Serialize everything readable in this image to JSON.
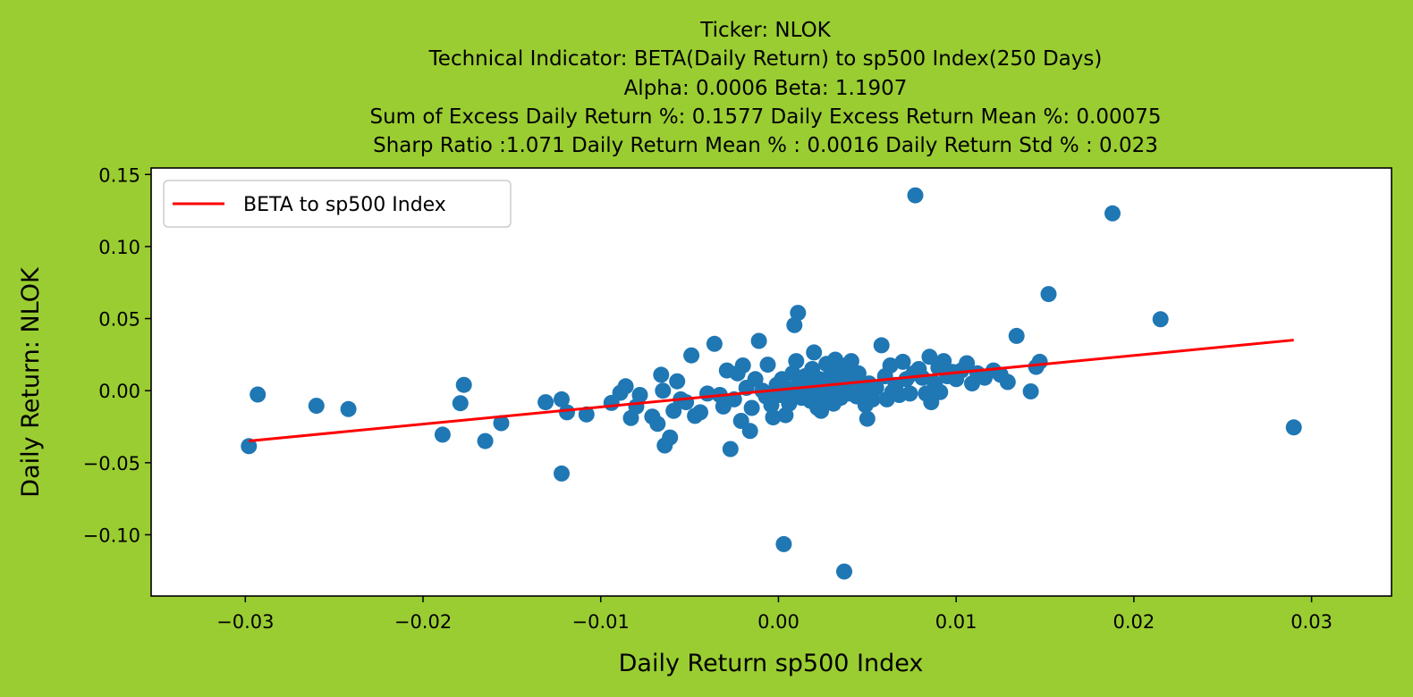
{
  "chart_data": {
    "type": "scatter",
    "title_lines": [
      "Ticker: NLOK",
      "Technical Indicator: BETA(Daily Return) to sp500 Index(250 Days)",
      "Alpha: 0.0006   Beta: 1.1907",
      "Sum of Excess Daily Return %: 0.1577   Daily Excess Return Mean %: 0.00075",
      "Sharp Ratio :1.071    Daily Return Mean % : 0.0016    Daily Return Std % : 0.023"
    ],
    "xlabel": "Daily Return sp500 Index",
    "ylabel": "Daily Return: NLOK",
    "xlim": [
      -0.0353,
      0.0345
    ],
    "ylim": [
      -0.1425,
      0.1545
    ],
    "xticks": [
      -0.03,
      -0.02,
      -0.01,
      0.0,
      0.01,
      0.02,
      0.03
    ],
    "xtick_labels": [
      "−0.03",
      "−0.02",
      "−0.01",
      "0.00",
      "0.01",
      "0.02",
      "0.03"
    ],
    "yticks": [
      -0.1,
      -0.05,
      0.0,
      0.05,
      0.1,
      0.15
    ],
    "ytick_labels": [
      "−0.10",
      "−0.05",
      "0.00",
      "0.05",
      "0.10",
      "0.15"
    ],
    "grid": false,
    "legend": {
      "position": "top-left",
      "entries": [
        "BETA to sp500 Index"
      ]
    },
    "colors": {
      "background": "#9ACD32",
      "points": "#1F77B4",
      "line": "#FF0000",
      "plot_bg": "#FFFFFF"
    },
    "series": [
      {
        "type": "line",
        "name": "BETA to sp500 Index",
        "x": [
          -0.0298,
          0.029
        ],
        "y": [
          -0.0349,
          0.0351
        ]
      },
      {
        "type": "scatter",
        "points": [
          [
            -0.0298,
            -0.0385
          ],
          [
            -0.0293,
            -0.0027
          ],
          [
            -0.026,
            -0.0105
          ],
          [
            -0.0242,
            -0.0128
          ],
          [
            -0.0189,
            -0.0305
          ],
          [
            -0.0179,
            -0.0087
          ],
          [
            -0.0177,
            0.004
          ],
          [
            -0.0165,
            -0.035
          ],
          [
            -0.0156,
            -0.0225
          ],
          [
            -0.0131,
            -0.008
          ],
          [
            -0.0122,
            -0.006
          ],
          [
            -0.0122,
            -0.0575
          ],
          [
            -0.0119,
            -0.015
          ],
          [
            -0.0108,
            -0.0165
          ],
          [
            -0.0094,
            -0.0085
          ],
          [
            -0.0089,
            -0.0015
          ],
          [
            -0.0086,
            0.003
          ],
          [
            -0.0083,
            -0.019
          ],
          [
            -0.008,
            -0.011
          ],
          [
            -0.0078,
            -0.003
          ],
          [
            -0.0071,
            -0.018
          ],
          [
            -0.0068,
            -0.023
          ],
          [
            -0.0066,
            0.011
          ],
          [
            -0.0065,
            0.0
          ],
          [
            -0.0064,
            -0.038
          ],
          [
            -0.0061,
            -0.0325
          ],
          [
            -0.0059,
            -0.014
          ],
          [
            -0.0057,
            0.0065
          ],
          [
            -0.0055,
            -0.006
          ],
          [
            -0.0052,
            -0.008
          ],
          [
            -0.0049,
            0.0245
          ],
          [
            -0.0047,
            -0.0175
          ],
          [
            -0.0044,
            -0.015
          ],
          [
            -0.004,
            -0.002
          ],
          [
            -0.0036,
            0.0325
          ],
          [
            -0.0033,
            -0.003
          ],
          [
            -0.0031,
            -0.011
          ],
          [
            -0.0029,
            0.014
          ],
          [
            -0.0027,
            -0.0405
          ],
          [
            -0.0025,
            -0.006
          ],
          [
            -0.0023,
            0.012
          ],
          [
            -0.0021,
            -0.021
          ],
          [
            -0.002,
            0.0175
          ],
          [
            -0.0018,
            0.002
          ],
          [
            -0.0016,
            -0.028
          ],
          [
            -0.0015,
            -0.012
          ],
          [
            -0.0013,
            0.008
          ],
          [
            -0.0011,
            0.0345
          ],
          [
            -0.0009,
            0.0
          ],
          [
            -0.0007,
            -0.004
          ],
          [
            -0.0006,
            0.018
          ],
          [
            -0.0004,
            -0.01
          ],
          [
            -0.0003,
            -0.0185
          ],
          [
            -0.0001,
            0.004
          ],
          [
            0.0001,
            -0.003
          ],
          [
            0.0002,
            0.008
          ],
          [
            0.0003,
            -0.1065
          ],
          [
            0.0004,
            -0.017
          ],
          [
            0.0006,
            -0.009
          ],
          [
            0.0007,
            0.001
          ],
          [
            0.0008,
            0.012
          ],
          [
            0.0009,
            0.0455
          ],
          [
            0.001,
            0.0205
          ],
          [
            0.0011,
            0.054
          ],
          [
            0.0012,
            0.006
          ],
          [
            0.0013,
            -0.005
          ],
          [
            0.0014,
            -0.002
          ],
          [
            0.0015,
            0.01
          ],
          [
            0.0016,
            0.003
          ],
          [
            0.0018,
            -0.007
          ],
          [
            0.0019,
            0.015
          ],
          [
            0.002,
            0.0265
          ],
          [
            0.0021,
            0.0
          ],
          [
            0.0022,
            -0.012
          ],
          [
            0.0023,
            0.008
          ],
          [
            0.0024,
            -0.014
          ],
          [
            0.0025,
            0.002
          ],
          [
            0.0026,
            -0.006
          ],
          [
            0.0027,
            0.0185
          ],
          [
            0.0028,
            -0.003
          ],
          [
            0.0029,
            0.01
          ],
          [
            0.003,
            0.005
          ],
          [
            0.0031,
            -0.009
          ],
          [
            0.0032,
            0.0215
          ],
          [
            0.0033,
            0.0
          ],
          [
            0.0034,
            0.015
          ],
          [
            0.0035,
            -0.005
          ],
          [
            0.0036,
            0.01
          ],
          [
            0.0037,
            -0.1255
          ],
          [
            0.0038,
            0.005
          ],
          [
            0.0039,
            0.018
          ],
          [
            0.004,
            -0.002
          ],
          [
            0.0041,
            0.0205
          ],
          [
            0.0042,
            0.008
          ],
          [
            0.0044,
            -0.004
          ],
          [
            0.0045,
            0.012
          ],
          [
            0.0047,
            0.0
          ],
          [
            0.0049,
            -0.01
          ],
          [
            0.005,
            -0.0195
          ],
          [
            0.0051,
            0.005
          ],
          [
            0.0053,
            -0.006
          ],
          [
            0.0055,
            0.002
          ],
          [
            0.0058,
            0.0315
          ],
          [
            0.006,
            0.01
          ],
          [
            0.0061,
            -0.006
          ],
          [
            0.0063,
            0.0175
          ],
          [
            0.0064,
            -0.001
          ],
          [
            0.0066,
            0.004
          ],
          [
            0.0068,
            -0.003
          ],
          [
            0.007,
            0.02
          ],
          [
            0.0072,
            0.008
          ],
          [
            0.0074,
            -0.002
          ],
          [
            0.0076,
            0.012
          ],
          [
            0.0077,
            0.1355
          ],
          [
            0.0079,
            0.015
          ],
          [
            0.0081,
            0.009
          ],
          [
            0.0083,
            -0.002
          ],
          [
            0.0085,
            0.0235
          ],
          [
            0.0086,
            -0.008
          ],
          [
            0.0088,
            0.005
          ],
          [
            0.009,
            0.016
          ],
          [
            0.0091,
            -0.001
          ],
          [
            0.0093,
            0.0205
          ],
          [
            0.0095,
            0.01
          ],
          [
            0.0098,
            0.013
          ],
          [
            0.01,
            0.008
          ],
          [
            0.0103,
            0.014
          ],
          [
            0.0106,
            0.019
          ],
          [
            0.0109,
            0.005
          ],
          [
            0.0112,
            0.012
          ],
          [
            0.0116,
            0.009
          ],
          [
            0.0121,
            0.014
          ],
          [
            0.0125,
            0.011
          ],
          [
            0.0129,
            0.006
          ],
          [
            0.0134,
            0.038
          ],
          [
            0.0142,
            -0.0005
          ],
          [
            0.0145,
            0.0165
          ],
          [
            0.0147,
            0.02
          ],
          [
            0.0152,
            0.067
          ],
          [
            0.0188,
            0.123
          ],
          [
            0.0215,
            0.0495
          ],
          [
            0.029,
            -0.0255
          ]
        ]
      }
    ]
  }
}
